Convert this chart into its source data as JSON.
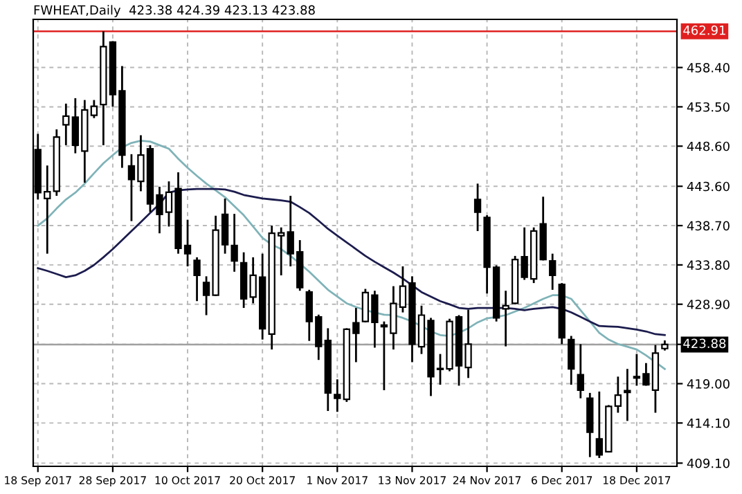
{
  "chart_data": {
    "type": "candlestick",
    "title": "FWHEAT,Daily  423.38 424.39 423.13 423.88",
    "categories": [
      "18 Sep 2017",
      null,
      null,
      null,
      null,
      null,
      null,
      null,
      "28 Sep 2017",
      null,
      null,
      null,
      null,
      null,
      null,
      null,
      "10 Oct 2017",
      null,
      null,
      null,
      null,
      null,
      null,
      null,
      "20 Oct 2017",
      null,
      null,
      null,
      null,
      null,
      null,
      null,
      "1 Nov 2017",
      null,
      null,
      null,
      null,
      null,
      null,
      null,
      "13 Nov 2017",
      null,
      null,
      null,
      null,
      null,
      null,
      null,
      "24 Nov 2017",
      null,
      null,
      null,
      null,
      null,
      null,
      null,
      "6 Dec 2017",
      null,
      null,
      null,
      null,
      null,
      null,
      null,
      "18 Dec 2017",
      null,
      null,
      null
    ],
    "ohlc": [
      [
        448.16,
        450.13,
        441.96,
        442.8
      ],
      [
        442.07,
        446.19,
        435.2,
        442.92
      ],
      [
        442.98,
        450.69,
        442.41,
        449.74
      ],
      [
        451.26,
        453.9,
        448.72,
        452.33
      ],
      [
        452.21,
        454.58,
        447.71,
        448.72
      ],
      [
        447.99,
        454.35,
        444.05,
        453.11
      ],
      [
        452.44,
        454.35,
        452.1,
        453.57
      ],
      [
        453.79,
        462.91,
        448.72,
        461.0
      ],
      [
        461.56,
        461.68,
        453.51,
        455.03
      ],
      [
        455.48,
        458.58,
        445.9,
        447.48
      ],
      [
        446.13,
        447.6,
        439.26,
        444.44
      ],
      [
        444.21,
        449.96,
        442.98,
        447.48
      ],
      [
        448.27,
        448.72,
        440.38,
        441.4
      ],
      [
        442.52,
        443.54,
        437.74,
        440.1
      ],
      [
        440.38,
        444.21,
        438.58,
        442.86
      ],
      [
        443.31,
        445.34,
        435.2,
        435.88
      ],
      [
        436.22,
        439.43,
        433.62,
        435.2
      ],
      [
        434.36,
        434.75,
        429.29,
        432.5
      ],
      [
        431.6,
        432.38,
        427.54,
        430.02
      ],
      [
        430.02,
        439.93,
        429.91,
        438.13
      ],
      [
        440.1,
        442.07,
        435.2,
        436.33
      ],
      [
        436.22,
        440.16,
        432.95,
        434.3
      ],
      [
        434.07,
        435.37,
        428.44,
        429.57
      ],
      [
        429.79,
        434.75,
        429.01,
        432.5
      ],
      [
        432.27,
        435.2,
        424.5,
        425.85
      ],
      [
        425.18,
        438.7,
        423.26,
        437.74
      ],
      [
        437.45,
        438.47,
        432.5,
        437.79
      ],
      [
        437.9,
        442.41,
        433.62,
        435.2
      ],
      [
        435.43,
        436.89,
        430.58,
        430.98
      ],
      [
        430.41,
        430.7,
        424.33,
        426.75
      ],
      [
        427.32,
        427.6,
        421.96,
        423.65
      ],
      [
        424.39,
        425.91,
        415.6,
        417.85
      ],
      [
        417.63,
        419.54,
        415.49,
        417.18
      ],
      [
        417.06,
        425.91,
        416.73,
        425.79
      ],
      [
        426.58,
        428.44,
        421.68,
        425.29
      ],
      [
        426.75,
        430.81,
        426.64,
        430.36
      ],
      [
        430.02,
        430.58,
        423.49,
        426.64
      ],
      [
        426.3,
        426.75,
        418.19,
        426.1
      ],
      [
        425.29,
        431.15,
        423.26,
        429.0
      ],
      [
        428.55,
        433.62,
        427.88,
        431.15
      ],
      [
        431.54,
        432.38,
        421.68,
        423.93
      ],
      [
        423.6,
        428.72,
        422.7,
        427.54
      ],
      [
        426.86,
        427.2,
        417.46,
        419.88
      ],
      [
        420.78,
        422.7,
        418.87,
        420.89
      ],
      [
        420.84,
        427.09,
        420.55,
        426.75
      ],
      [
        427.32,
        427.54,
        418.75,
        421.23
      ],
      [
        421.01,
        428.22,
        419.71,
        423.93
      ],
      [
        441.96,
        443.93,
        438.02,
        440.38
      ],
      [
        439.71,
        439.99,
        430.24,
        433.51
      ],
      [
        433.51,
        433.74,
        426.75,
        427.2
      ],
      [
        428.33,
        430.58,
        423.65,
        428.72
      ],
      [
        429.01,
        434.92,
        428.89,
        434.47
      ],
      [
        434.81,
        438.47,
        431.94,
        432.27
      ],
      [
        432.05,
        438.47,
        431.54,
        438.02
      ],
      [
        438.92,
        442.3,
        434.36,
        434.47
      ],
      [
        434.3,
        435.2,
        430.7,
        432.5
      ],
      [
        431.37,
        431.54,
        423.93,
        424.72
      ],
      [
        424.5,
        424.95,
        418.87,
        420.84
      ],
      [
        420.11,
        423.93,
        417.18,
        418.19
      ],
      [
        417.18,
        417.85,
        409.85,
        412.95
      ],
      [
        412.11,
        418.02,
        409.74,
        410.14
      ],
      [
        410.53,
        416.33,
        410.42,
        416.16
      ],
      [
        416.22,
        419.88,
        415.38,
        417.57
      ],
      [
        418.13,
        420.84,
        414.36,
        417.91
      ],
      [
        419.88,
        422.7,
        418.75,
        419.71
      ],
      [
        420.22,
        421.57,
        418.75,
        418.87
      ],
      [
        418.19,
        423.82,
        415.38,
        422.81
      ],
      [
        423.38,
        424.39,
        423.13,
        423.88
      ]
    ],
    "series": [
      {
        "type": "line",
        "color": "#7fb3b8",
        "values": [
          438.69,
          439.6,
          440.83,
          441.96,
          442.81,
          443.93,
          445.23,
          446.47,
          447.48,
          448.44,
          449.0,
          449.28,
          449.17,
          448.72,
          448.27,
          447.03,
          445.9,
          444.89,
          443.93,
          443.09,
          442.24,
          441.12,
          439.99,
          438.58,
          437.17,
          436.33,
          435.77,
          434.92,
          433.96,
          432.95,
          431.82,
          430.7,
          429.85,
          429.01,
          428.55,
          428.16,
          427.88,
          427.6,
          427.54,
          427.2,
          426.75,
          426.19,
          425.51,
          425.06,
          424.95,
          425.34,
          425.91,
          426.64,
          427.15,
          427.32,
          427.54,
          427.99,
          428.44,
          429.01,
          429.57,
          430.02,
          430.02,
          429.57,
          428.16,
          426.75,
          425.34,
          424.5,
          423.94,
          423.6,
          423.26,
          422.53,
          421.68,
          420.84
        ]
      },
      {
        "type": "line",
        "color": "#1c1c4e",
        "values": [
          433.4,
          433.06,
          432.67,
          432.27,
          432.5,
          433.06,
          433.79,
          434.75,
          435.77,
          436.89,
          438.02,
          439.14,
          440.27,
          441.4,
          442.81,
          443.09,
          443.2,
          443.26,
          443.26,
          443.26,
          443.2,
          442.92,
          442.52,
          442.3,
          442.07,
          441.96,
          441.85,
          441.68,
          441.0,
          440.27,
          439.31,
          438.3,
          437.45,
          436.61,
          435.77,
          434.92,
          434.19,
          433.51,
          432.84,
          432.1,
          431.26,
          430.41,
          429.85,
          429.29,
          428.89,
          428.44,
          428.33,
          428.44,
          428.44,
          428.44,
          428.44,
          428.33,
          428.16,
          428.33,
          428.44,
          428.55,
          428.33,
          427.88,
          427.32,
          426.75,
          426.19,
          426.13,
          426.08,
          425.91,
          425.74,
          425.51,
          425.17,
          425.06
        ]
      }
    ],
    "ylim": [
      408.7,
      464.4
    ],
    "yticks": [
      {
        "value": 409.1,
        "label": "409.10"
      },
      {
        "value": 414.1,
        "label": "414.10"
      },
      {
        "value": 419.0,
        "label": "419.00"
      },
      {
        "value": 423.9,
        "label": null
      },
      {
        "value": 428.9,
        "label": "428.90"
      },
      {
        "value": 433.8,
        "label": "433.80"
      },
      {
        "value": 438.7,
        "label": "438.70"
      },
      {
        "value": 443.6,
        "label": "443.60"
      },
      {
        "value": 448.6,
        "label": "448.60"
      },
      {
        "value": 453.5,
        "label": "453.50"
      },
      {
        "value": 458.4,
        "label": "458.40"
      }
    ],
    "ref_lines": [
      {
        "axis": "y",
        "value": 462.91,
        "label": "462.91",
        "color": "#e02020"
      },
      {
        "axis": "y",
        "value": 423.88,
        "label": "423.88",
        "color": "#a0a0a0"
      }
    ],
    "grid": true,
    "legend": false
  }
}
